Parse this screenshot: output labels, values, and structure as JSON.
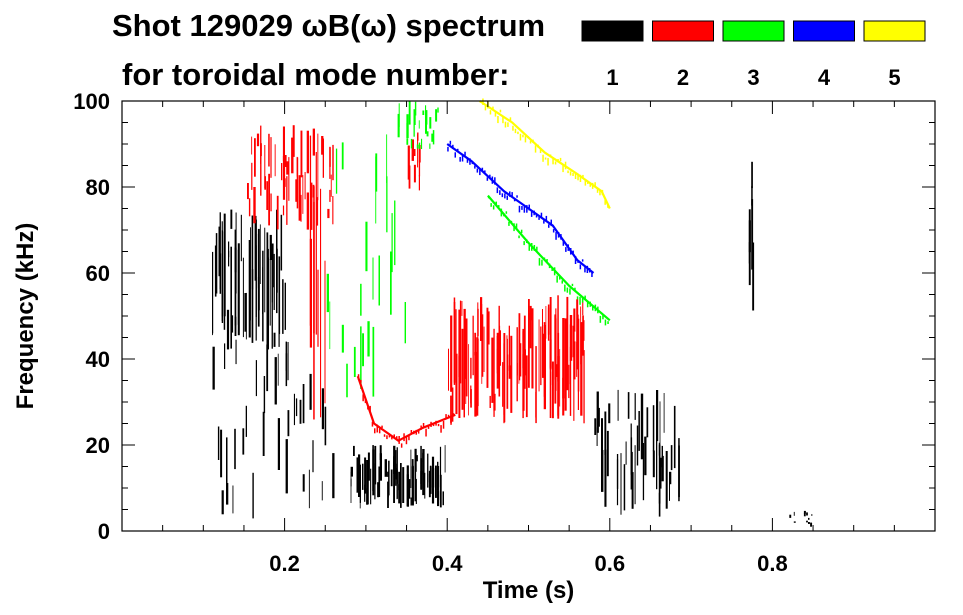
{
  "chart_data": {
    "type": "heatmap",
    "title_line1": "Shot 129029 ωB(ω) spectrum",
    "title_line2": "for toroidal mode number:",
    "xlabel": "Time (s)",
    "ylabel": "Frequency (kHz)",
    "xlim": [
      0.0,
      1.0
    ],
    "ylim": [
      0,
      100
    ],
    "x_ticks": [
      0.2,
      0.4,
      0.6,
      0.8
    ],
    "x_tick_labels": [
      "0.2",
      "0.4",
      "0.6",
      "0.8"
    ],
    "y_ticks": [
      0,
      20,
      40,
      60,
      80,
      100
    ],
    "y_tick_labels": [
      "0",
      "20",
      "40",
      "60",
      "80",
      "100"
    ],
    "legend": {
      "placement": "top-right",
      "entries": [
        {
          "label": "1",
          "color": "#000000"
        },
        {
          "label": "2",
          "color": "#ff0000"
        },
        {
          "label": "3",
          "color": "#00ff00"
        },
        {
          "label": "4",
          "color": "#0000ff"
        },
        {
          "label": "5",
          "color": "#ffff00"
        }
      ]
    },
    "regions": [
      {
        "mode": "1",
        "t": [
          0.11,
          0.2
        ],
        "f": [
          42,
          75
        ],
        "density": "high"
      },
      {
        "mode": "1",
        "t": [
          0.11,
          0.26
        ],
        "f": [
          2,
          45
        ],
        "density": "sparse"
      },
      {
        "mode": "1",
        "t": [
          0.28,
          0.4
        ],
        "f": [
          5,
          20
        ],
        "density": "high"
      },
      {
        "mode": "1",
        "t": [
          0.58,
          0.69
        ],
        "f": [
          3,
          35
        ],
        "density": "medium"
      },
      {
        "mode": "1",
        "t": [
          0.77,
          0.78
        ],
        "f": [
          45,
          88
        ],
        "density": "medium"
      },
      {
        "mode": "1",
        "t": [
          0.82,
          0.85
        ],
        "f": [
          1,
          5
        ],
        "density": "low"
      },
      {
        "mode": "2",
        "t": [
          0.15,
          0.26
        ],
        "f": [
          70,
          95
        ],
        "density": "medium"
      },
      {
        "mode": "2",
        "t": [
          0.23,
          0.25
        ],
        "f": [
          20,
          100
        ],
        "density": "high"
      },
      {
        "mode": "2",
        "t": [
          0.35,
          0.37
        ],
        "f": [
          78,
          95
        ],
        "density": "medium"
      },
      {
        "mode": "2",
        "t": [
          0.4,
          0.57
        ],
        "f": [
          25,
          55
        ],
        "density": "high"
      },
      {
        "mode": "3",
        "t": [
          0.33,
          0.39
        ],
        "f": [
          88,
          100
        ],
        "density": "medium"
      },
      {
        "mode": "3",
        "t": [
          0.25,
          0.35
        ],
        "f": [
          30,
          95
        ],
        "density": "low"
      }
    ],
    "ridges": [
      {
        "mode": "2",
        "points": [
          [
            0.29,
            36
          ],
          [
            0.31,
            25
          ],
          [
            0.34,
            21
          ],
          [
            0.37,
            24
          ],
          [
            0.41,
            27
          ]
        ]
      },
      {
        "mode": "3",
        "points": [
          [
            0.45,
            78
          ],
          [
            0.5,
            67
          ],
          [
            0.55,
            57
          ],
          [
            0.6,
            49
          ]
        ]
      },
      {
        "mode": "4",
        "points": [
          [
            0.4,
            90
          ],
          [
            0.43,
            86
          ],
          [
            0.47,
            79
          ],
          [
            0.5,
            75
          ],
          [
            0.53,
            71
          ],
          [
            0.56,
            63
          ],
          [
            0.58,
            60
          ]
        ]
      },
      {
        "mode": "5",
        "points": [
          [
            0.44,
            100
          ],
          [
            0.48,
            95
          ],
          [
            0.52,
            88
          ],
          [
            0.56,
            83
          ],
          [
            0.59,
            79
          ],
          [
            0.6,
            75
          ]
        ]
      }
    ]
  }
}
